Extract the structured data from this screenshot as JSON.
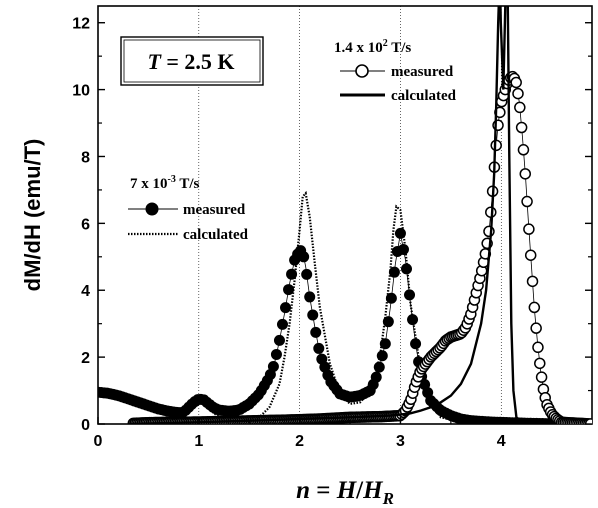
{
  "chart_data": {
    "type": "line",
    "xlabel_main": "n",
    "xlabel_eq": " = ",
    "xlabel_H": "H",
    "xlabel_slash": "/",
    "xlabel_HR": "H",
    "xlabel_R": "R",
    "ylabel": "dM/dH  (emu/T)",
    "xlim": [
      0,
      4.9
    ],
    "ylim": [
      0,
      12.5
    ],
    "xticks": [
      "0",
      "1",
      "2",
      "3",
      "4"
    ],
    "yticks": [
      "0",
      "2",
      "4",
      "6",
      "8",
      "10",
      "12"
    ],
    "vlines": [
      1,
      2,
      3,
      4
    ],
    "grid": false,
    "annotation": {
      "T": "T",
      "value": " = 2.5 K"
    },
    "legend_slow": {
      "title_base": "7 x 10",
      "title_exp": "-3",
      "title_unit": " T/s",
      "measured": "measured",
      "calculated": "calculated"
    },
    "legend_fast": {
      "title_base": "1.4 x 10",
      "title_exp": "2",
      "title_unit": " T/s",
      "measured": "measured",
      "calculated": "calculated"
    },
    "series": [
      {
        "name": "measured",
        "rate": "7 x 10^-3 T/s",
        "marker": "filled-circle",
        "x": [
          0.0,
          0.1,
          0.2,
          0.3,
          0.4,
          0.5,
          0.6,
          0.7,
          0.8,
          0.85,
          0.9,
          0.95,
          1.0,
          1.05,
          1.1,
          1.15,
          1.2,
          1.3,
          1.4,
          1.5,
          1.6,
          1.7,
          1.75,
          1.8,
          1.85,
          1.9,
          1.95,
          2.0,
          2.03,
          2.06,
          2.1,
          2.15,
          2.2,
          2.3,
          2.4,
          2.5,
          2.6,
          2.7,
          2.75,
          2.8,
          2.85,
          2.9,
          2.95,
          3.0,
          3.05,
          3.1,
          3.15,
          3.2,
          3.3,
          3.4,
          3.5,
          3.6,
          3.7,
          3.8,
          3.9,
          4.0,
          4.1,
          4.2,
          4.3,
          4.5
        ],
        "y": [
          0.95,
          0.92,
          0.85,
          0.75,
          0.65,
          0.55,
          0.45,
          0.38,
          0.34,
          0.35,
          0.5,
          0.65,
          0.75,
          0.72,
          0.6,
          0.48,
          0.42,
          0.38,
          0.42,
          0.6,
          0.9,
          1.4,
          1.8,
          2.5,
          3.3,
          4.2,
          4.9,
          5.2,
          5.15,
          4.7,
          3.8,
          2.9,
          2.1,
          1.3,
          0.9,
          0.8,
          0.85,
          1.0,
          1.3,
          1.8,
          2.4,
          3.5,
          4.8,
          5.7,
          4.9,
          3.6,
          2.4,
          1.5,
          0.7,
          0.4,
          0.25,
          0.15,
          0.1,
          0.08,
          0.06,
          0.05,
          0.04,
          0.03,
          0.02,
          0.01
        ]
      },
      {
        "name": "calculated",
        "rate": "7 x 10^-3 T/s",
        "style": "dotted",
        "x": [
          0.3,
          0.5,
          0.7,
          0.8,
          0.9,
          0.95,
          1.0,
          1.05,
          1.1,
          1.2,
          1.4,
          1.6,
          1.7,
          1.8,
          1.85,
          1.9,
          1.95,
          2.0,
          2.03,
          2.06,
          2.1,
          2.15,
          2.2,
          2.3,
          2.4,
          2.5,
          2.6,
          2.7,
          2.75,
          2.8,
          2.85,
          2.9,
          2.93,
          2.96,
          3.0,
          3.05,
          3.1,
          3.2,
          3.3,
          3.4,
          3.6,
          3.8,
          4.0,
          4.2,
          4.5
        ],
        "y": [
          0.02,
          0.05,
          0.15,
          0.3,
          0.5,
          0.65,
          0.75,
          0.62,
          0.45,
          0.2,
          0.12,
          0.2,
          0.5,
          1.2,
          2.0,
          3.0,
          4.3,
          5.8,
          6.8,
          6.9,
          6.2,
          4.8,
          3.5,
          1.8,
          0.9,
          0.6,
          0.65,
          1.0,
          1.4,
          2.1,
          3.2,
          4.6,
          5.8,
          6.5,
          6.4,
          5.2,
          3.6,
          1.6,
          0.6,
          0.2,
          0.06,
          0.03,
          0.02,
          0.01,
          0.0
        ]
      },
      {
        "name": "measured",
        "rate": "1.4 x 10^2 T/s",
        "marker": "open-circle",
        "x": [
          0.35,
          0.5,
          0.7,
          1.0,
          1.3,
          1.6,
          1.9,
          2.2,
          2.5,
          2.8,
          3.0,
          3.05,
          3.1,
          3.15,
          3.2,
          3.3,
          3.4,
          3.45,
          3.5,
          3.55,
          3.6,
          3.65,
          3.7,
          3.75,
          3.8,
          3.85,
          3.88,
          3.91,
          3.94,
          3.97,
          4.0,
          4.03,
          4.06,
          4.09,
          4.12,
          4.15,
          4.18,
          4.21,
          4.24,
          4.27,
          4.3,
          4.33,
          4.36,
          4.39,
          4.42,
          4.45,
          4.5,
          4.55,
          4.6,
          4.9
        ],
        "y": [
          0.02,
          0.04,
          0.05,
          0.06,
          0.08,
          0.1,
          0.12,
          0.15,
          0.2,
          0.22,
          0.25,
          0.4,
          0.7,
          1.2,
          1.6,
          2.0,
          2.3,
          2.5,
          2.6,
          2.65,
          2.7,
          2.9,
          3.3,
          3.9,
          4.5,
          5.2,
          5.8,
          6.8,
          8.0,
          9.0,
          9.6,
          9.9,
          10.2,
          10.35,
          10.4,
          10.2,
          9.6,
          8.6,
          7.4,
          6.0,
          4.7,
          3.4,
          2.4,
          1.6,
          1.0,
          0.6,
          0.3,
          0.15,
          0.05,
          0.0
        ]
      },
      {
        "name": "calculated",
        "rate": "1.4 x 10^2 T/s",
        "style": "solid",
        "x": [
          0.3,
          1.0,
          1.5,
          2.0,
          2.5,
          2.9,
          3.0,
          3.1,
          3.2,
          3.3,
          3.4,
          3.5,
          3.6,
          3.7,
          3.8,
          3.85,
          3.9,
          3.93,
          3.95,
          3.97,
          3.985,
          3.995,
          4.02,
          4.04,
          4.055,
          4.065,
          4.08,
          4.1,
          4.12,
          4.15,
          4.2,
          4.3,
          4.5
        ],
        "y": [
          0.0,
          0.05,
          0.1,
          0.15,
          0.2,
          0.25,
          0.28,
          0.32,
          0.4,
          0.5,
          0.65,
          0.85,
          1.2,
          1.8,
          3.0,
          4.0,
          5.8,
          7.5,
          9.5,
          12.0,
          13.5,
          12.0,
          10.0,
          12.5,
          13.5,
          12.5,
          8.0,
          3.0,
          1.0,
          0.2,
          0.05,
          0.0,
          0.0
        ]
      }
    ]
  }
}
